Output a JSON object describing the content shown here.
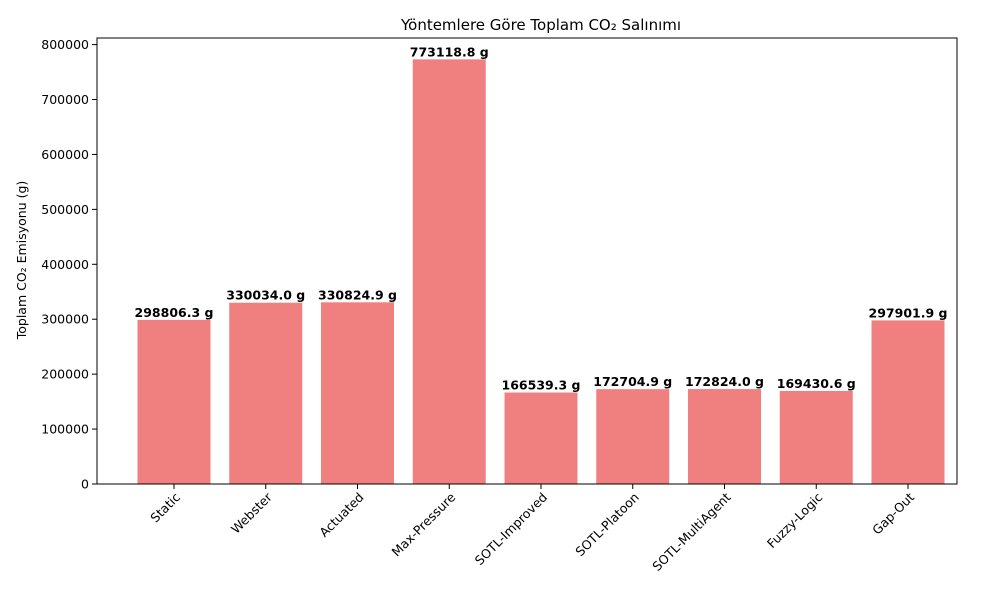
{
  "chart_data": {
    "type": "bar",
    "title": "Yöntemlere Göre Toplam CO₂ Salınımı",
    "xlabel": "",
    "ylabel": "Toplam CO₂ Emisyonu (g)",
    "categories": [
      "Static",
      "Webster",
      "Actuated",
      "Max-Pressure",
      "SOTL-Improved",
      "SOTL-Platoon",
      "SOTL-MultiAgent",
      "Fuzzy-Logic",
      "Gap-Out"
    ],
    "values": [
      298806.3,
      330034.0,
      330824.9,
      773118.8,
      166539.3,
      172704.9,
      172824.0,
      169430.6,
      297901.9
    ],
    "data_labels": [
      "298806.3 g",
      "330034.0 g",
      "330824.9 g",
      "773118.8 g",
      "166539.3 g",
      "172704.9 g",
      "172824.0 g",
      "169430.6 g",
      "297901.9 g"
    ],
    "ylim": [
      0,
      812000
    ],
    "yticks": [
      0,
      100000,
      200000,
      300000,
      400000,
      500000,
      600000,
      700000,
      800000
    ],
    "ytick_labels": [
      "0",
      "100000",
      "200000",
      "300000",
      "400000",
      "500000",
      "600000",
      "700000",
      "800000"
    ],
    "bar_color": "#f08080",
    "grid": false,
    "legend": "none"
  }
}
